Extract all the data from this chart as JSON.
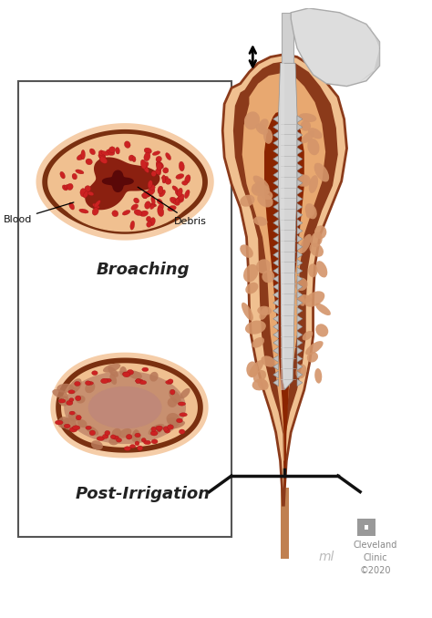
{
  "bg_color": "#ffffff",
  "broaching_label": "Broaching",
  "post_irrigation_label": "Post-Irrigation",
  "blood_label": "Blood",
  "debris_label": "Debris",
  "cleveland_text": "Cleveland\nClinic\n©2020",
  "title_fontsize": 12,
  "annotation_fontsize": 8,
  "peach_outer": "#f5cda8",
  "cortex_brown": "#7a3010",
  "peach_inner": "#f0c090",
  "blood_red": "#cc2222",
  "debris_dark": "#7a1a0a",
  "marrow_red": "#c03020",
  "irrigated_tan": "#c8906a",
  "irrigated_center": "#c08060",
  "trabecular": "#b07055",
  "femur_peach": "#f0c090",
  "femur_cortex": "#8B3A1A",
  "femur_cancel": "#e8a870",
  "femur_marrow": "#8B2500",
  "broach_silver": "#d5d5d5",
  "broach_gray": "#b0b0b0",
  "handle_gray": "#d8d8d8",
  "arrow_color": "#111111",
  "text_color": "#222222",
  "box_edge": "#555555",
  "logo_gray": "#999999"
}
